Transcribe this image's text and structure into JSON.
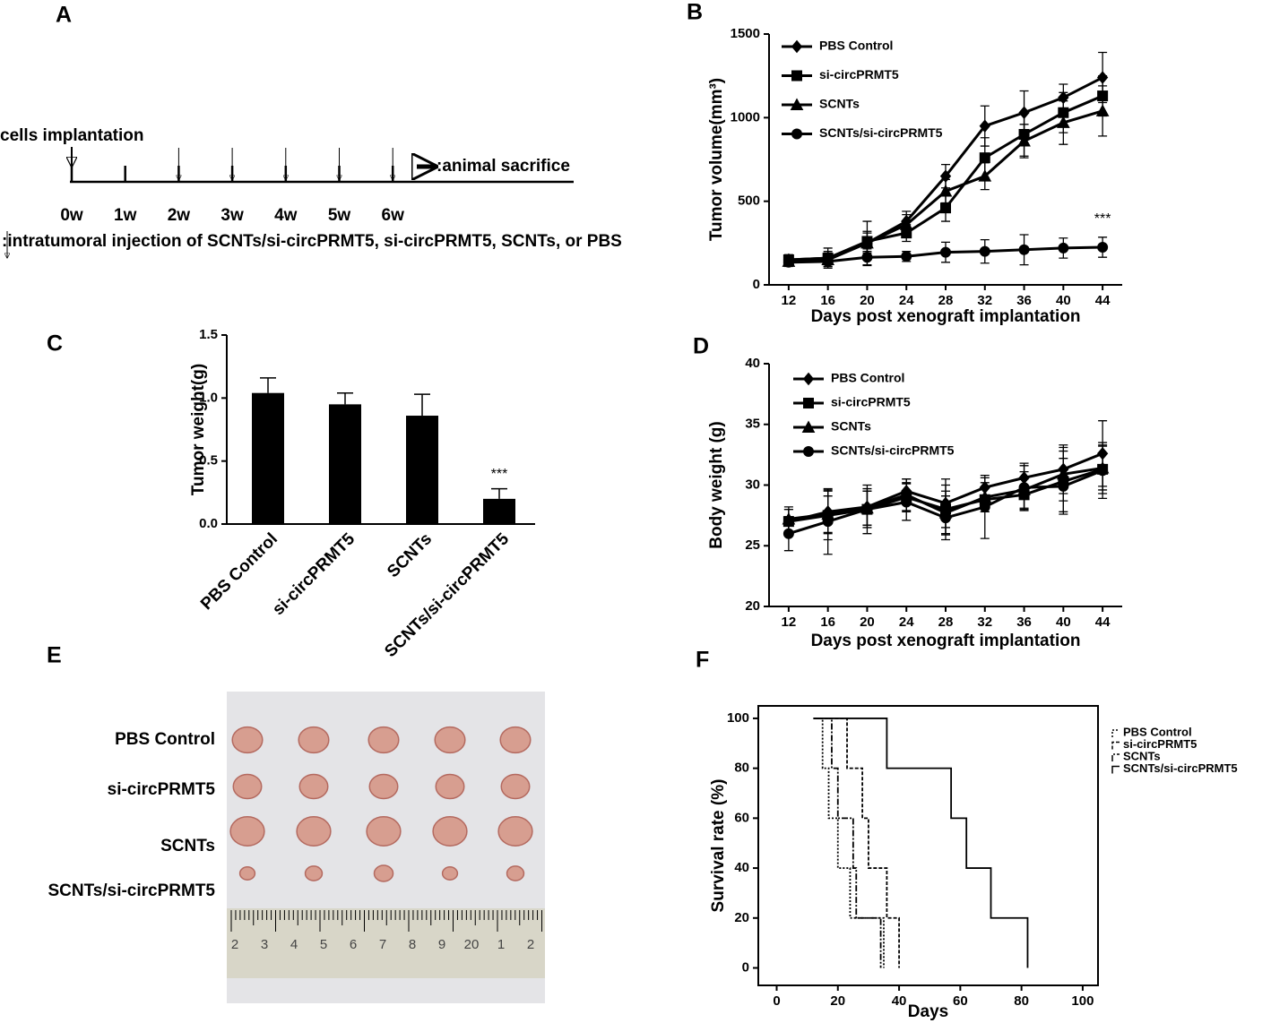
{
  "timeline": {
    "panel_label": "A",
    "start_label": "cells implantation",
    "weeks": [
      "0w",
      "1w",
      "2w",
      "3w",
      "4w",
      "5w",
      "6w"
    ],
    "end_label": ":animal sacrifice",
    "injection_label": ":intratumoral injection of SCNTs/si-circPRMT5, si-circPRMT5, SCNTs, or PBS"
  },
  "photo": {
    "panel_label": "E",
    "row_labels": [
      "PBS Control",
      "si-circPRMT5",
      "SCNTs",
      "SCNTs/si-circPRMT5"
    ],
    "ruler_labels": [
      "2",
      "3",
      "4",
      "5",
      "6",
      "7",
      "8",
      "9",
      "20",
      "1",
      "2"
    ]
  },
  "chart_data": [
    {
      "type": "line",
      "panel_label": "B",
      "x_label": "Days post xenograft implantation",
      "y_label": "Tumor volume(mm³)",
      "x": [
        12,
        16,
        20,
        24,
        28,
        32,
        36,
        40,
        44
      ],
      "xlim": [
        10,
        46
      ],
      "xticks": [
        12,
        16,
        20,
        24,
        28,
        32,
        36,
        40,
        44
      ],
      "ylim": [
        0,
        1500
      ],
      "yticks": [
        0,
        500,
        1000,
        1500
      ],
      "legend": "upper left",
      "annotation": "***",
      "series": [
        {
          "name": "PBS Control",
          "color": "#000000",
          "marker": "diamond",
          "values": [
            150,
            160,
            250,
            380,
            650,
            950,
            1030,
            1120,
            1240
          ],
          "errors": [
            30,
            60,
            130,
            60,
            70,
            120,
            130,
            80,
            150
          ]
        },
        {
          "name": "si-circPRMT5",
          "color": "#000000",
          "marker": "square",
          "values": [
            150,
            160,
            260,
            310,
            460,
            760,
            900,
            1030,
            1130
          ],
          "errors": [
            30,
            40,
            60,
            50,
            80,
            120,
            130,
            120,
            120
          ]
        },
        {
          "name": "SCNTs",
          "color": "#000000",
          "marker": "triangle",
          "values": [
            140,
            150,
            250,
            360,
            560,
            650,
            860,
            970,
            1040
          ],
          "errors": [
            30,
            40,
            60,
            60,
            70,
            80,
            100,
            130,
            150
          ]
        },
        {
          "name": "SCNTs/si-circPRMT5",
          "color": "#000000",
          "marker": "circle",
          "values": [
            135,
            140,
            165,
            170,
            195,
            200,
            210,
            220,
            225
          ],
          "errors": [
            20,
            30,
            50,
            30,
            60,
            70,
            90,
            60,
            60
          ]
        }
      ]
    },
    {
      "type": "bar",
      "panel_label": "C",
      "y_label": "Tumor weight(g)",
      "categories": [
        "PBS Control",
        "si-circPRMT5",
        "SCNTs",
        "SCNTs/si-circPRMT5"
      ],
      "values": [
        1.04,
        0.95,
        0.86,
        0.2
      ],
      "errors": [
        0.12,
        0.09,
        0.17,
        0.08
      ],
      "color": "#000000",
      "ylim": [
        0,
        1.5
      ],
      "yticks": [
        {
          "value": 0,
          "label": "0.0"
        },
        0.5,
        {
          "value": 1,
          "label": "1.0"
        },
        1.5
      ],
      "annotation": "***"
    },
    {
      "type": "line",
      "panel_label": "D",
      "x_label": "Days post xenograft implantation",
      "y_label": "Body weight (g)",
      "x": [
        12,
        16,
        20,
        24,
        28,
        32,
        36,
        40,
        44
      ],
      "xlim": [
        10,
        46
      ],
      "xticks": [
        12,
        16,
        20,
        24,
        28,
        32,
        36,
        40,
        44
      ],
      "ylim": [
        20,
        40
      ],
      "yticks": [
        20,
        25,
        30,
        35,
        40
      ],
      "legend": "upper left",
      "series": [
        {
          "name": "PBS Control",
          "color": "#000000",
          "marker": "diamond",
          "values": [
            27,
            27.8,
            28.2,
            29.5,
            28.5,
            29.8,
            30.6,
            31.3,
            32.6
          ],
          "errors": [
            1,
            1.8,
            1.5,
            1,
            2,
            0.8,
            1.2,
            2,
            2.7
          ]
        },
        {
          "name": "si-circPRMT5",
          "color": "#000000",
          "marker": "square",
          "values": [
            27,
            27.5,
            28,
            29,
            28,
            28.8,
            29.2,
            30.3,
            31.3
          ],
          "errors": [
            1,
            2,
            1.5,
            1.2,
            2,
            1,
            1.3,
            2.5,
            2
          ]
        },
        {
          "name": "SCNTs",
          "color": "#000000",
          "marker": "triangle",
          "values": [
            27.2,
            27.6,
            28.1,
            29.2,
            27.7,
            29,
            29.6,
            30.9,
            31.4
          ],
          "errors": [
            1,
            1.5,
            1.4,
            1.3,
            1.8,
            1.2,
            1.5,
            2.2,
            1.8
          ]
        },
        {
          "name": "SCNTs/si-circPRMT5",
          "color": "#000000",
          "marker": "circle",
          "values": [
            26,
            27,
            28,
            28.6,
            27.3,
            28.2,
            29.8,
            29.9,
            31.2
          ],
          "errors": [
            1.4,
            2.7,
            2,
            1.5,
            1.8,
            2.6,
            1.8,
            2.3,
            2.3
          ]
        }
      ]
    },
    {
      "type": "step",
      "panel_label": "F",
      "x_label": "Days",
      "y_label": "Survival rate (%)",
      "xlim": [
        -6,
        105
      ],
      "xticks": [
        0,
        20,
        40,
        60,
        80,
        100
      ],
      "ylim": [
        -7,
        105
      ],
      "yticks": [
        0,
        20,
        40,
        60,
        80,
        100
      ],
      "frame": true,
      "legend": "outside right",
      "series": [
        {
          "name": "PBS Control",
          "color": "#000000",
          "line_style": "dotted",
          "x": [
            12,
            15,
            17,
            20,
            24,
            35
          ],
          "values": [
            100,
            80,
            60,
            40,
            20,
            0
          ]
        },
        {
          "name": "si-circPRMT5",
          "color": "#000000",
          "line_style": "dashed",
          "x": [
            12,
            23,
            28,
            30,
            36,
            40
          ],
          "values": [
            100,
            80,
            60,
            40,
            20,
            0
          ]
        },
        {
          "name": "SCNTs",
          "color": "#000000",
          "line_style": "dashdot",
          "x": [
            12,
            18,
            20,
            25,
            26,
            34
          ],
          "values": [
            100,
            80,
            60,
            40,
            20,
            0
          ]
        },
        {
          "name": "SCNTs/si-circPRMT5",
          "color": "#000000",
          "line_style": "solid",
          "x": [
            12,
            36,
            57,
            62,
            70,
            82
          ],
          "values": [
            100,
            80,
            60,
            40,
            20,
            0
          ]
        }
      ]
    }
  ]
}
